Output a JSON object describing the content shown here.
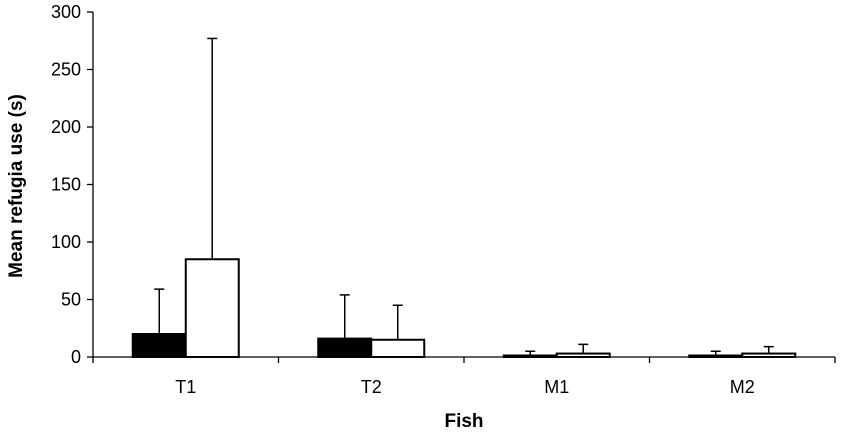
{
  "chart_data": {
    "type": "bar",
    "xlabel": "Fish",
    "ylabel": "Mean refugia use (s)",
    "ylim": [
      0,
      300
    ],
    "yticks": [
      0,
      50,
      100,
      150,
      200,
      250,
      300
    ],
    "categories": [
      "T1",
      "T2",
      "M1",
      "M2"
    ],
    "grid": false,
    "series": [
      {
        "fill": "#000000",
        "values": [
          20,
          16,
          1,
          1
        ],
        "error_upper": [
          59,
          54,
          5,
          5
        ]
      },
      {
        "fill": "#ffffff",
        "values": [
          85,
          15,
          3,
          3
        ],
        "error_upper": [
          277,
          45,
          11,
          9
        ]
      }
    ],
    "colors": {
      "axis": "#000000",
      "bar_outline": "#000000"
    }
  }
}
